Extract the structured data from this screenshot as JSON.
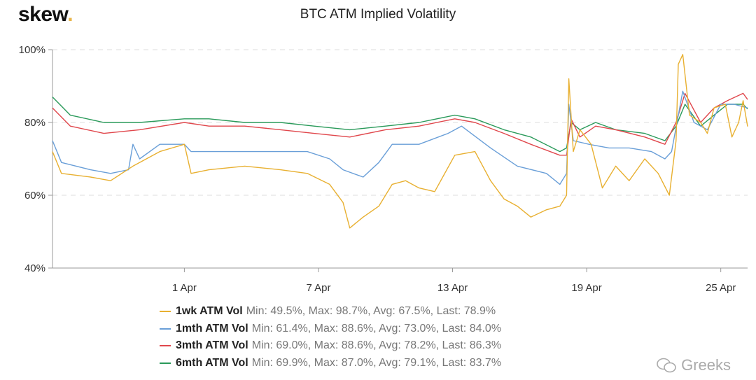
{
  "logo": {
    "text": "skew",
    "dot": "."
  },
  "watermark": "Greeks",
  "chart_data": {
    "type": "line",
    "title": "BTC ATM Implied Volatility",
    "xlabel": "",
    "ylabel": "",
    "x_unit": "days relative to 1 Apr",
    "xlim": [
      -5.9,
      25.2
    ],
    "ylim": [
      40,
      100
    ],
    "yticks": [
      {
        "v": 40,
        "label": "40%"
      },
      {
        "v": 60,
        "label": "60%"
      },
      {
        "v": 80,
        "label": "80%"
      },
      {
        "v": 100,
        "label": "100%"
      }
    ],
    "xticks": [
      {
        "v": 0,
        "label": "1 Apr"
      },
      {
        "v": 6,
        "label": "7 Apr"
      },
      {
        "v": 12,
        "label": "13 Apr"
      },
      {
        "v": 18,
        "label": "19 Apr"
      },
      {
        "v": 24,
        "label": "25 Apr"
      }
    ],
    "grid": "horizontal-dashed",
    "legend_placement": "bottom",
    "series": [
      {
        "name": "1wk ATM Vol",
        "color": "#e8b031",
        "stats": "Min: 49.5%, Max: 98.7%, Avg: 67.5%, Last: 78.9%",
        "x": [
          -5.9,
          -5.5,
          -4.2,
          -3.3,
          -2.3,
          -1.1,
          0,
          0.3,
          1.1,
          2.7,
          4.3,
          5.5,
          6.5,
          7.1,
          7.4,
          8.0,
          8.7,
          9.3,
          9.9,
          10.5,
          11.2,
          12.1,
          13.0,
          13.7,
          14.3,
          14.9,
          15.5,
          16.2,
          16.8,
          17.1,
          17.2,
          17.4,
          17.7,
          18.2,
          18.7,
          19.3,
          19.9,
          20.6,
          21.2,
          21.7,
          22.0,
          22.1,
          22.3,
          22.6,
          23.1,
          23.4,
          23.7,
          24.2,
          24.5,
          24.8,
          25.0,
          25.2
        ],
        "y": [
          72,
          66,
          65,
          64,
          68,
          72,
          74,
          66,
          67,
          68,
          67,
          66,
          63,
          58,
          51,
          54,
          57,
          63,
          64,
          62,
          61,
          71,
          72,
          64,
          59,
          57,
          54,
          56,
          57,
          60,
          92,
          72,
          78,
          74,
          62,
          68,
          64,
          70,
          66,
          60,
          75,
          96,
          98.7,
          82,
          80,
          77,
          84,
          85,
          76,
          80,
          86,
          78.9
        ]
      },
      {
        "name": "1mth ATM Vol",
        "color": "#6a9fd8",
        "stats": "Min: 61.4%, Max: 88.6%, Avg: 73.0%, Last: 84.0%",
        "x": [
          -5.9,
          -5.5,
          -4.2,
          -3.3,
          -2.5,
          -2.3,
          -2.0,
          -1.1,
          0,
          0.3,
          2.1,
          4.3,
          5.5,
          6.5,
          7.1,
          8.0,
          8.7,
          9.3,
          10.5,
          11.8,
          12.4,
          13.7,
          14.9,
          16.2,
          16.8,
          17.1,
          17.2,
          17.4,
          18.1,
          19.0,
          19.9,
          20.9,
          21.5,
          21.8,
          22.3,
          22.8,
          23.4,
          24.0,
          24.6,
          25.2
        ],
        "y": [
          75,
          69,
          67,
          66,
          67,
          74,
          70,
          74,
          74,
          72,
          72,
          72,
          72,
          70,
          67,
          65,
          69,
          74,
          74,
          77,
          79,
          73,
          68,
          66,
          63,
          66,
          85,
          75,
          74,
          73,
          73,
          72,
          70,
          72,
          88.6,
          80,
          78,
          85,
          85,
          84
        ]
      },
      {
        "name": "3mth ATM Vol",
        "color": "#e0474c",
        "stats": "Min: 69.0%, Max: 88.6%, Avg: 78.2%, Last: 86.3%",
        "x": [
          -5.9,
          -5.1,
          -3.6,
          -2.0,
          0,
          1.1,
          2.7,
          4.3,
          5.8,
          7.4,
          9.0,
          10.5,
          12.1,
          13.0,
          14.3,
          15.5,
          16.8,
          17.1,
          17.3,
          17.7,
          18.4,
          19.3,
          20.6,
          21.5,
          22.0,
          22.4,
          23.1,
          23.7,
          24.3,
          25.0,
          25.2
        ],
        "y": [
          84,
          79,
          77,
          78,
          80,
          79,
          79,
          78,
          77,
          76,
          78,
          79,
          81,
          80,
          77,
          74,
          71,
          71,
          81,
          76,
          79,
          78,
          76,
          74,
          80,
          88,
          80,
          84,
          86,
          88,
          86.3
        ]
      },
      {
        "name": "6mth ATM Vol",
        "color": "#2a9a5a",
        "stats": "Min: 69.9%, Max: 87.0%, Avg: 79.1%, Last: 83.7%",
        "x": [
          -5.9,
          -5.1,
          -3.6,
          -2.0,
          0,
          1.1,
          2.7,
          4.3,
          5.8,
          7.4,
          9.0,
          10.5,
          12.1,
          13.0,
          14.3,
          15.5,
          16.8,
          17.1,
          17.3,
          17.7,
          18.4,
          19.3,
          20.6,
          21.5,
          22.0,
          22.4,
          23.1,
          23.7,
          24.3,
          25.0,
          25.2
        ],
        "y": [
          87,
          82,
          80,
          80,
          81,
          81,
          80,
          80,
          79,
          78,
          79,
          80,
          82,
          81,
          78,
          76,
          72,
          73,
          80,
          78,
          80,
          78,
          77,
          75,
          79,
          85,
          79,
          82,
          85,
          85,
          83.7
        ]
      }
    ]
  }
}
